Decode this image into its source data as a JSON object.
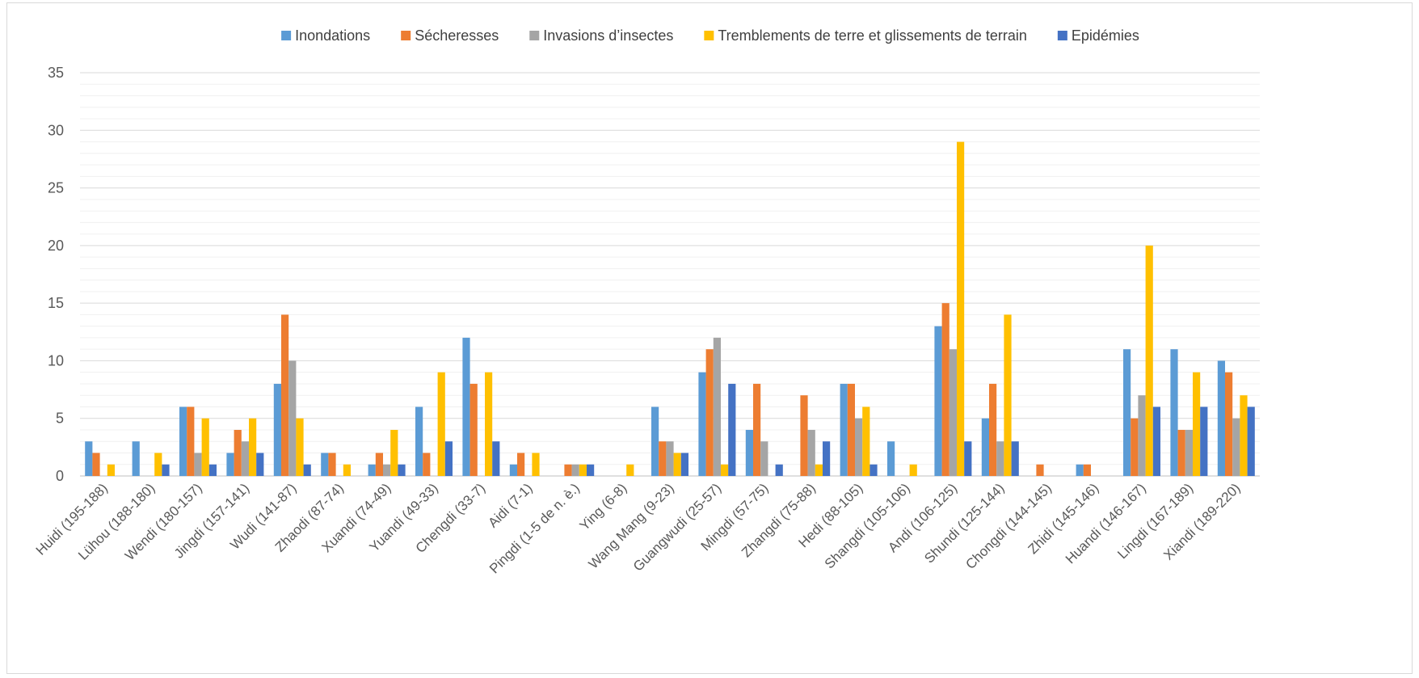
{
  "chart_data": {
    "type": "bar",
    "title": "",
    "xlabel": "",
    "ylabel": "",
    "ylim": [
      0,
      35
    ],
    "yticks": [
      0,
      5,
      10,
      15,
      20,
      25,
      30,
      35
    ],
    "minor_gridlines": true,
    "legend_position": "top",
    "categories": [
      "Huidi (195-188)",
      "Lühou (188-180)",
      "Wendi (180-157)",
      "Jingdi (157-141)",
      "Wudi (141-87)",
      "Zhaodi (87-74)",
      "Xuandi (74-49)",
      "Yuandi (49-33)",
      "Chengdi (33-7)",
      "Aidi (7-1)",
      "Pingdi (1-5 de n. è.)",
      "Ying (6-8)",
      "Wang Mang (9-23)",
      "Guangwudi (25-57)",
      "Mingdi (57-75)",
      "Zhangdi (75-88)",
      "Hedi (88-105)",
      "Shangdi (105-106)",
      "Andi (106-125)",
      "Shundi (125-144)",
      "Chongdi (144-145)",
      "Zhidi (145-146)",
      "Huandi (146-167)",
      "Lingdi (167-189)",
      "Xiandi (189-220)"
    ],
    "series": [
      {
        "name": "Inondations",
        "color": "#5B9BD5",
        "values": [
          3,
          3,
          6,
          2,
          8,
          2,
          1,
          6,
          12,
          1,
          0,
          0,
          6,
          9,
          4,
          0,
          8,
          3,
          13,
          5,
          0,
          1,
          11,
          11,
          10
        ]
      },
      {
        "name": "Sécheresses",
        "color": "#ED7D31",
        "values": [
          2,
          0,
          6,
          4,
          14,
          2,
          2,
          2,
          8,
          2,
          1,
          0,
          3,
          11,
          8,
          7,
          8,
          0,
          15,
          8,
          1,
          1,
          5,
          4,
          9
        ]
      },
      {
        "name": "Invasions d’insectes",
        "color": "#A5A5A5",
        "values": [
          0,
          0,
          2,
          3,
          10,
          0,
          1,
          0,
          0,
          0,
          1,
          0,
          3,
          12,
          3,
          4,
          5,
          0,
          11,
          3,
          0,
          0,
          7,
          4,
          5
        ]
      },
      {
        "name": "Tremblements de terre et glissements de terrain",
        "color": "#FFC000",
        "values": [
          1,
          2,
          5,
          5,
          5,
          1,
          4,
          9,
          9,
          2,
          1,
          1,
          2,
          1,
          0,
          1,
          6,
          1,
          29,
          14,
          0,
          0,
          20,
          9,
          7
        ]
      },
      {
        "name": "Epidémies",
        "color": "#4472C4",
        "values": [
          0,
          1,
          1,
          2,
          1,
          0,
          1,
          3,
          3,
          0,
          1,
          0,
          2,
          8,
          1,
          3,
          1,
          0,
          3,
          3,
          0,
          0,
          6,
          6,
          6
        ]
      }
    ]
  }
}
